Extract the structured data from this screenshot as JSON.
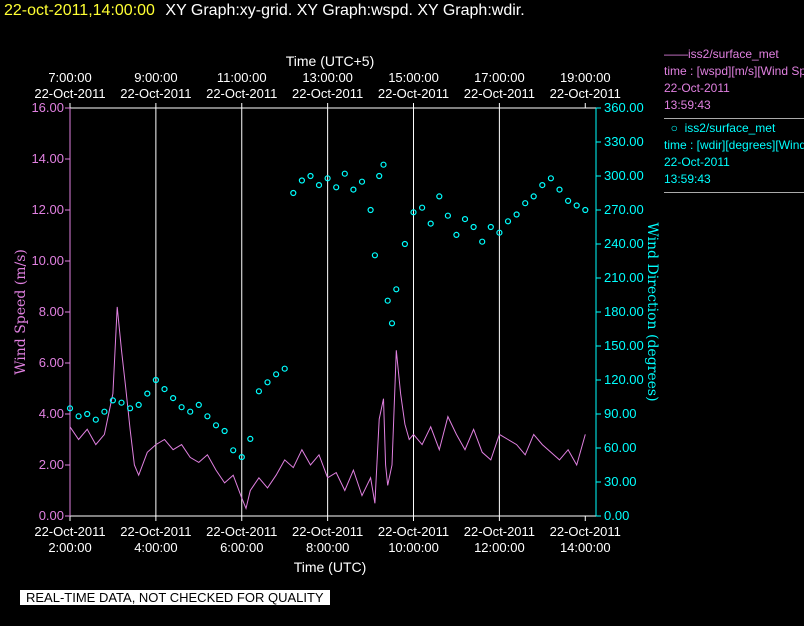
{
  "header": {
    "timestamp": "22-oct-2011,14:00:00",
    "graphs": "XY Graph:xy-grid.  XY Graph:wspd.  XY Graph:wdir."
  },
  "legend": {
    "wspd": {
      "name": "iss2/surface_met",
      "desc": "time : [wspd][m/s][Wind Speed]",
      "date": "22-Oct-2011",
      "time": "13:59:43"
    },
    "wdir": {
      "name": "iss2/surface_met",
      "desc": "time : [wdir][degrees][Wind Direction]",
      "date": "22-Oct-2011",
      "time": "13:59:43"
    }
  },
  "banner": "REAL-TIME DATA, NOT CHECKED FOR QUALITY",
  "colors": {
    "wspd": "#e080e0",
    "wdir": "#00ffff",
    "grid": "#ffffff",
    "axis_left": "#e080e0",
    "axis_right": "#00ffff"
  },
  "chart_data": {
    "type": "line",
    "xlabel_bottom": "Time (UTC)",
    "xlabel_top": "Time (UTC+5)",
    "ylabel_left": "Wind Speed (m/s)",
    "ylabel_right": "Wind Direction (degrees)",
    "xlim_hours_utc": [
      2,
      14.25
    ],
    "ylim_left": [
      0,
      16
    ],
    "ylim_right": [
      0,
      360
    ],
    "bottom_ticks": [
      {
        "hour": 2,
        "date": "22-Oct-2011",
        "time": "2:00:00"
      },
      {
        "hour": 4,
        "date": "22-Oct-2011",
        "time": "4:00:00"
      },
      {
        "hour": 6,
        "date": "22-Oct-2011",
        "time": "6:00:00"
      },
      {
        "hour": 8,
        "date": "22-Oct-2011",
        "time": "8:00:00"
      },
      {
        "hour": 10,
        "date": "22-Oct-2011",
        "time": "10:00:00"
      },
      {
        "hour": 12,
        "date": "22-Oct-2011",
        "time": "12:00:00"
      },
      {
        "hour": 14,
        "date": "22-Oct-2011",
        "time": "14:00:00"
      }
    ],
    "top_ticks": [
      {
        "hour": 2,
        "time": "7:00:00",
        "date": "22-Oct-2011"
      },
      {
        "hour": 4,
        "time": "9:00:00",
        "date": "22-Oct-2011"
      },
      {
        "hour": 6,
        "time": "11:00:00",
        "date": "22-Oct-2011"
      },
      {
        "hour": 8,
        "time": "13:00:00",
        "date": "22-Oct-2011"
      },
      {
        "hour": 10,
        "time": "15:00:00",
        "date": "22-Oct-2011"
      },
      {
        "hour": 12,
        "time": "17:00:00",
        "date": "22-Oct-2011"
      },
      {
        "hour": 14,
        "time": "19:00:00",
        "date": "22-Oct-2011"
      }
    ],
    "left_ticks": [
      "0.00",
      "2.00",
      "4.00",
      "6.00",
      "8.00",
      "10.00",
      "12.00",
      "14.00",
      "16.00"
    ],
    "right_ticks": [
      "0.00",
      "30.00",
      "60.00",
      "90.00",
      "120.00",
      "150.00",
      "180.00",
      "210.00",
      "240.00",
      "270.00",
      "300.00",
      "330.00",
      "360.00"
    ],
    "grid_x_hours": [
      4,
      6,
      8,
      10,
      12
    ],
    "series": [
      {
        "name": "iss2/surface_met",
        "variable": "wspd",
        "style": "line",
        "x": [
          2.0,
          2.2,
          2.4,
          2.6,
          2.8,
          3.0,
          3.1,
          3.2,
          3.3,
          3.4,
          3.5,
          3.6,
          3.8,
          4.0,
          4.2,
          4.4,
          4.6,
          4.8,
          5.0,
          5.2,
          5.4,
          5.6,
          5.8,
          6.0,
          6.1,
          6.2,
          6.4,
          6.6,
          6.8,
          7.0,
          7.2,
          7.4,
          7.6,
          7.8,
          8.0,
          8.2,
          8.4,
          8.6,
          8.8,
          9.0,
          9.1,
          9.2,
          9.3,
          9.35,
          9.4,
          9.5,
          9.6,
          9.7,
          9.8,
          9.9,
          10.0,
          10.2,
          10.4,
          10.6,
          10.8,
          11.0,
          11.2,
          11.4,
          11.6,
          11.8,
          12.0,
          12.2,
          12.4,
          12.6,
          12.8,
          13.0,
          13.2,
          13.4,
          13.6,
          13.8,
          14.0
        ],
        "y": [
          3.5,
          3.0,
          3.4,
          2.8,
          3.2,
          4.8,
          8.2,
          6.5,
          5.0,
          3.4,
          2.0,
          1.6,
          2.5,
          2.8,
          3.0,
          2.6,
          2.8,
          2.3,
          2.1,
          2.4,
          1.8,
          1.3,
          1.6,
          0.7,
          0.3,
          1.0,
          1.5,
          1.1,
          1.6,
          2.2,
          1.9,
          2.6,
          2.0,
          2.4,
          1.5,
          1.7,
          1.0,
          1.8,
          0.8,
          1.5,
          0.5,
          3.8,
          4.6,
          2.0,
          1.2,
          2.0,
          6.5,
          4.8,
          3.6,
          3.0,
          3.2,
          2.8,
          3.5,
          2.6,
          3.9,
          3.2,
          2.6,
          3.4,
          2.5,
          2.2,
          3.2,
          3.0,
          2.8,
          2.4,
          3.2,
          2.8,
          2.5,
          2.2,
          2.6,
          2.0,
          3.2
        ]
      },
      {
        "name": "iss2/surface_met",
        "variable": "wdir",
        "style": "markers",
        "x": [
          2.0,
          2.2,
          2.4,
          2.6,
          2.8,
          3.0,
          3.2,
          3.4,
          3.6,
          3.8,
          4.0,
          4.2,
          4.4,
          4.6,
          4.8,
          5.0,
          5.2,
          5.4,
          5.6,
          5.8,
          6.0,
          6.2,
          6.4,
          6.6,
          6.8,
          7.0,
          7.2,
          7.4,
          7.6,
          7.8,
          8.0,
          8.2,
          8.4,
          8.6,
          8.8,
          9.0,
          9.1,
          9.2,
          9.3,
          9.4,
          9.5,
          9.6,
          9.8,
          10.0,
          10.2,
          10.4,
          10.6,
          10.8,
          11.0,
          11.2,
          11.4,
          11.6,
          11.8,
          12.0,
          12.2,
          12.4,
          12.6,
          12.8,
          13.0,
          13.2,
          13.4,
          13.6,
          13.8,
          14.0
        ],
        "y": [
          95,
          88,
          90,
          85,
          92,
          102,
          100,
          95,
          98,
          108,
          120,
          112,
          104,
          96,
          92,
          98,
          88,
          80,
          75,
          58,
          52,
          68,
          110,
          118,
          125,
          130,
          285,
          296,
          300,
          292,
          298,
          290,
          302,
          288,
          295,
          270,
          230,
          300,
          310,
          190,
          170,
          200,
          240,
          268,
          272,
          258,
          282,
          265,
          248,
          262,
          255,
          242,
          255,
          250,
          260,
          266,
          276,
          282,
          292,
          298,
          288,
          278,
          274,
          270
        ]
      }
    ]
  }
}
